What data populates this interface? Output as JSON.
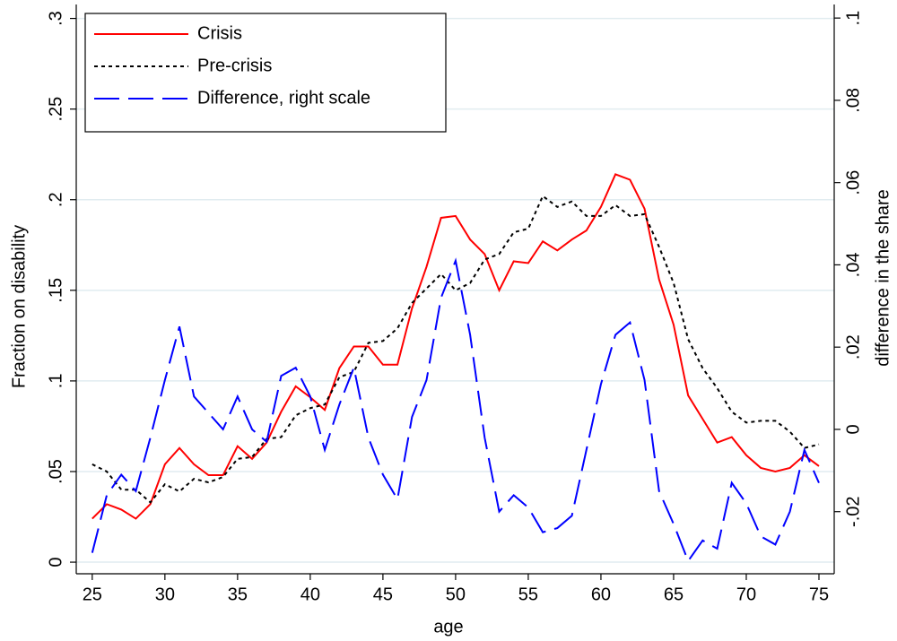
{
  "chart_data": {
    "type": "line",
    "x_label": "age",
    "y_label": "Fraction on disability",
    "y2_label": "difference in the share",
    "y2_label_color": "#0000ff",
    "x": [
      25,
      26,
      27,
      28,
      29,
      30,
      31,
      32,
      33,
      34,
      35,
      36,
      37,
      38,
      39,
      40,
      41,
      42,
      43,
      44,
      45,
      46,
      47,
      48,
      49,
      50,
      51,
      52,
      53,
      54,
      55,
      56,
      57,
      58,
      59,
      60,
      61,
      62,
      63,
      64,
      65,
      66,
      67,
      68,
      69,
      70,
      71,
      72,
      73,
      74,
      75
    ],
    "series": [
      {
        "name": "Crisis",
        "color": "#ff0000",
        "dash": "solid",
        "axis": "y",
        "values": [
          0.024,
          0.032,
          0.029,
          0.024,
          0.032,
          0.054,
          0.063,
          0.054,
          0.048,
          0.048,
          0.064,
          0.057,
          0.066,
          0.083,
          0.097,
          0.091,
          0.084,
          0.107,
          0.119,
          0.119,
          0.109,
          0.109,
          0.14,
          0.163,
          0.19,
          0.191,
          0.178,
          0.17,
          0.15,
          0.166,
          0.165,
          0.177,
          0.172,
          0.178,
          0.183,
          0.196,
          0.214,
          0.211,
          0.195,
          0.156,
          0.131,
          0.092,
          0.079,
          0.066,
          0.069,
          0.059,
          0.052,
          0.05,
          0.052,
          0.059,
          0.053
        ]
      },
      {
        "name": "Pre-crisis",
        "color": "#000000",
        "dash": "dotted",
        "axis": "y",
        "values": [
          0.054,
          0.05,
          0.04,
          0.04,
          0.033,
          0.043,
          0.039,
          0.046,
          0.044,
          0.047,
          0.057,
          0.058,
          0.068,
          0.069,
          0.081,
          0.085,
          0.087,
          0.102,
          0.105,
          0.121,
          0.122,
          0.129,
          0.143,
          0.151,
          0.159,
          0.15,
          0.154,
          0.167,
          0.17,
          0.182,
          0.184,
          0.202,
          0.196,
          0.199,
          0.191,
          0.191,
          0.197,
          0.191,
          0.192,
          0.174,
          0.154,
          0.123,
          0.107,
          0.096,
          0.083,
          0.077,
          0.078,
          0.078,
          0.072,
          0.063,
          0.065
        ]
      },
      {
        "name": "Difference, right scale",
        "color": "#0000ff",
        "dash": "dashed",
        "axis": "y2",
        "values": [
          -0.03,
          -0.016,
          -0.011,
          -0.015,
          -0.002,
          0.012,
          0.025,
          0.008,
          0.004,
          0.0,
          0.008,
          0.0,
          -0.003,
          0.013,
          0.015,
          0.008,
          -0.005,
          0.006,
          0.015,
          -0.002,
          -0.011,
          -0.017,
          0.003,
          0.012,
          0.032,
          0.041,
          0.023,
          -0.002,
          -0.02,
          -0.016,
          -0.019,
          -0.025,
          -0.024,
          -0.021,
          -0.005,
          0.011,
          0.023,
          0.026,
          0.012,
          -0.015,
          -0.023,
          -0.032,
          -0.027,
          -0.029,
          -0.013,
          -0.018,
          -0.026,
          -0.028,
          -0.02,
          -0.005,
          -0.013
        ]
      }
    ],
    "xlim": [
      23.9,
      76.05
    ],
    "xticks": [
      25,
      30,
      35,
      40,
      45,
      50,
      55,
      60,
      65,
      70,
      75
    ],
    "ylim": [
      -0.0064,
      0.3077
    ],
    "yticks": [
      0,
      {
        "value": 0.05,
        "label": ".05"
      },
      {
        "value": 0.1,
        "label": ".1"
      },
      {
        "value": 0.15,
        "label": ".15"
      },
      {
        "value": 0.2,
        "label": ".2"
      },
      {
        "value": 0.25,
        "label": ".25"
      },
      {
        "value": 0.3,
        "label": ".3"
      }
    ],
    "y2lim": [
      -0.0351,
      0.1033
    ],
    "y2ticks": [
      {
        "value": -0.02,
        "label": "-.02"
      },
      0,
      {
        "value": 0.02,
        "label": ".02"
      },
      {
        "value": 0.04,
        "label": ".04"
      },
      {
        "value": 0.06,
        "label": ".06"
      },
      {
        "value": 0.08,
        "label": ".08"
      },
      {
        "value": 0.1,
        "label": ".1"
      }
    ],
    "grid": true,
    "legend": "top-left"
  }
}
